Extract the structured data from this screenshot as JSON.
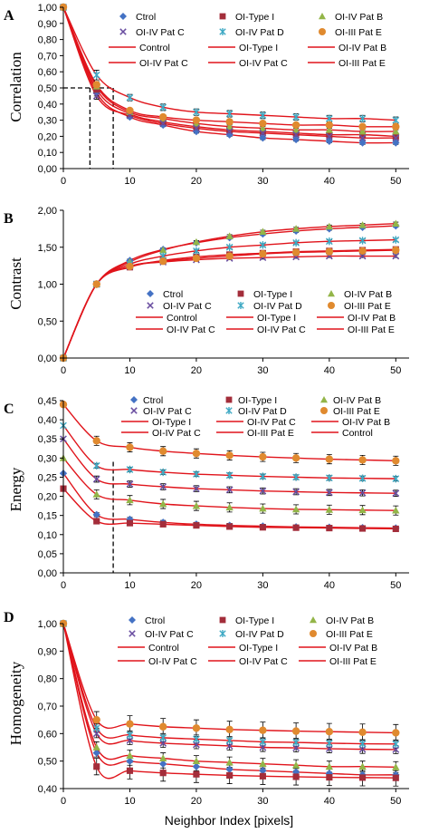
{
  "x_axis_label": "Neighbor Index [pixels]",
  "chart_data": [
    {
      "type": "scatter",
      "panel_letter": "A",
      "ylabel": "Correlation",
      "xlabel": "",
      "xlim": [
        0,
        52
      ],
      "ylim": [
        0,
        1.0
      ],
      "xticks": [
        0,
        10,
        20,
        30,
        40,
        50
      ],
      "xtick_labels": [
        "0",
        "10",
        "20",
        "30",
        "40",
        "50"
      ],
      "yticks": [
        0,
        0.1,
        0.2,
        0.3,
        0.4,
        0.5,
        0.6,
        0.7,
        0.8,
        0.9,
        1.0
      ],
      "ytick_labels": [
        "0,00",
        "0,10",
        "0,20",
        "0,30",
        "0,40",
        "0,50",
        "0,60",
        "0,70",
        "0,80",
        "0,90",
        "1,00"
      ],
      "x": [
        0,
        5,
        10,
        15,
        20,
        25,
        30,
        35,
        40,
        45,
        50
      ],
      "series": [
        {
          "name": "Ctrol",
          "marker": "diamond",
          "color": "#4472c4",
          "values": [
            1.0,
            0.47,
            0.32,
            0.27,
            0.23,
            0.21,
            0.19,
            0.18,
            0.17,
            0.16,
            0.16
          ],
          "error": [
            0.0,
            0.02,
            0.01,
            0.01,
            0.01,
            0.01,
            0.01,
            0.01,
            0.01,
            0.01,
            0.01
          ]
        },
        {
          "name": "OI-Type I",
          "marker": "square",
          "color": "#a32d3a",
          "values": [
            1.0,
            0.49,
            0.34,
            0.29,
            0.26,
            0.24,
            0.23,
            0.22,
            0.21,
            0.21,
            0.2
          ],
          "error": [
            0.0,
            0.02,
            0.01,
            0.01,
            0.01,
            0.01,
            0.01,
            0.01,
            0.01,
            0.01,
            0.01
          ]
        },
        {
          "name": "OI-IV Pat B",
          "marker": "triangle",
          "color": "#93b548",
          "values": [
            1.0,
            0.51,
            0.35,
            0.31,
            0.28,
            0.26,
            0.25,
            0.24,
            0.24,
            0.23,
            0.23
          ],
          "error": [
            0.0,
            0.02,
            0.01,
            0.01,
            0.01,
            0.01,
            0.01,
            0.01,
            0.01,
            0.01,
            0.01
          ]
        },
        {
          "name": "OI-IV Pat C",
          "marker": "x",
          "color": "#6a4ea0",
          "values": [
            1.0,
            0.45,
            0.33,
            0.28,
            0.25,
            0.23,
            0.22,
            0.21,
            0.2,
            0.19,
            0.19
          ],
          "error": [
            0.0,
            0.02,
            0.01,
            0.01,
            0.01,
            0.01,
            0.01,
            0.01,
            0.01,
            0.01,
            0.01
          ]
        },
        {
          "name": "OI-IV Pat D",
          "marker": "asterisk",
          "color": "#3fa9c4",
          "values": [
            1.0,
            0.58,
            0.44,
            0.38,
            0.35,
            0.34,
            0.33,
            0.32,
            0.31,
            0.31,
            0.3
          ],
          "error": [
            0.0,
            0.03,
            0.02,
            0.02,
            0.02,
            0.02,
            0.02,
            0.02,
            0.02,
            0.02,
            0.02
          ]
        },
        {
          "name": "OI-III Pat E",
          "marker": "circle",
          "color": "#e08a2f",
          "values": [
            1.0,
            0.52,
            0.36,
            0.32,
            0.3,
            0.29,
            0.28,
            0.27,
            0.27,
            0.26,
            0.26
          ],
          "error": [
            0.0,
            0.02,
            0.01,
            0.01,
            0.01,
            0.01,
            0.01,
            0.01,
            0.01,
            0.01,
            0.01
          ]
        }
      ],
      "fit_labels": [
        "Control",
        "OI-Type I",
        "OI-IV Pat B",
        "OI-IV Pat C",
        "OI-IV Pat C",
        "OI-III Pat E"
      ],
      "fit_color": "#e0141b",
      "legend_position": "top-right",
      "annotations": {
        "dashed_horizontal_y": 0.5,
        "dashed_horizontal_x": [
          0,
          7.5
        ],
        "dashed_vertical_x": [
          4,
          7.5
        ],
        "dashed_vertical_top": 0.5
      }
    },
    {
      "type": "scatter",
      "panel_letter": "B",
      "ylabel": "Contrast",
      "xlabel": "",
      "xlim": [
        0,
        52
      ],
      "ylim": [
        0,
        2.0
      ],
      "xticks": [
        0,
        10,
        20,
        30,
        40,
        50
      ],
      "xtick_labels": [
        "0",
        "10",
        "20",
        "30",
        "40",
        "50"
      ],
      "yticks": [
        0,
        0.5,
        1.0,
        1.5,
        2.0
      ],
      "ytick_labels": [
        "0,00",
        "0,50",
        "1,00",
        "1,50",
        "2,00"
      ],
      "x": [
        0,
        5,
        10,
        15,
        20,
        25,
        30,
        35,
        40,
        45,
        50
      ],
      "series": [
        {
          "name": "Ctrol",
          "marker": "diamond",
          "color": "#4472c4",
          "values": [
            0.0,
            1.0,
            1.32,
            1.47,
            1.56,
            1.63,
            1.68,
            1.72,
            1.75,
            1.77,
            1.79
          ],
          "error": [
            0.0,
            0.01,
            0.02,
            0.02,
            0.02,
            0.02,
            0.02,
            0.02,
            0.02,
            0.02,
            0.02
          ]
        },
        {
          "name": "OI-Type I",
          "marker": "square",
          "color": "#a32d3a",
          "values": [
            0.0,
            1.0,
            1.23,
            1.32,
            1.37,
            1.4,
            1.42,
            1.44,
            1.45,
            1.46,
            1.47
          ],
          "error": [
            0.0,
            0.01,
            0.02,
            0.02,
            0.02,
            0.02,
            0.02,
            0.02,
            0.02,
            0.02,
            0.02
          ]
        },
        {
          "name": "OI-IV Pat B",
          "marker": "triangle",
          "color": "#93b548",
          "values": [
            0.0,
            1.0,
            1.3,
            1.46,
            1.57,
            1.65,
            1.71,
            1.75,
            1.78,
            1.8,
            1.82
          ],
          "error": [
            0.0,
            0.01,
            0.02,
            0.02,
            0.02,
            0.02,
            0.02,
            0.02,
            0.02,
            0.02,
            0.02
          ]
        },
        {
          "name": "OI-IV Pat C",
          "marker": "x",
          "color": "#6a4ea0",
          "values": [
            0.0,
            1.0,
            1.24,
            1.3,
            1.33,
            1.35,
            1.36,
            1.37,
            1.38,
            1.38,
            1.38
          ],
          "error": [
            0.0,
            0.01,
            0.02,
            0.02,
            0.02,
            0.02,
            0.02,
            0.02,
            0.02,
            0.02,
            0.02
          ]
        },
        {
          "name": "OI-IV Pat D",
          "marker": "asterisk",
          "color": "#3fa9c4",
          "values": [
            0.0,
            1.0,
            1.27,
            1.38,
            1.45,
            1.5,
            1.53,
            1.56,
            1.58,
            1.59,
            1.6
          ],
          "error": [
            0.0,
            0.01,
            0.02,
            0.02,
            0.02,
            0.02,
            0.02,
            0.02,
            0.02,
            0.02,
            0.02
          ]
        },
        {
          "name": "OI-III Pat E",
          "marker": "circle",
          "color": "#e08a2f",
          "values": [
            0.0,
            1.0,
            1.24,
            1.31,
            1.35,
            1.38,
            1.41,
            1.43,
            1.44,
            1.45,
            1.46
          ],
          "error": [
            0.0,
            0.01,
            0.02,
            0.02,
            0.02,
            0.02,
            0.02,
            0.02,
            0.02,
            0.02,
            0.02
          ]
        }
      ],
      "fit_labels": [
        "Control",
        "OI-Type I",
        "OI-IV Pat B",
        "OI-IV Pat C",
        "OI-IV Pat C",
        "OI-III Pat E"
      ],
      "fit_color": "#e0141b",
      "legend_position": "lower-right"
    },
    {
      "type": "scatter",
      "panel_letter": "C",
      "ylabel": "Energy",
      "xlabel": "",
      "xlim": [
        0,
        52
      ],
      "ylim": [
        0,
        0.45
      ],
      "xticks": [
        0,
        10,
        20,
        30,
        40,
        50
      ],
      "xtick_labels": [
        "0",
        "10",
        "20",
        "30",
        "40",
        "50"
      ],
      "yticks": [
        0,
        0.05,
        0.1,
        0.15,
        0.2,
        0.25,
        0.3,
        0.35,
        0.4,
        0.45
      ],
      "ytick_labels": [
        "0,00",
        "0,05",
        "0,10",
        "0,15",
        "0,20",
        "0,25",
        "0,30",
        "0,35",
        "0,40",
        "0,45"
      ],
      "x": [
        0,
        5,
        10,
        15,
        20,
        25,
        30,
        35,
        40,
        45,
        50
      ],
      "series": [
        {
          "name": "Ctrol",
          "marker": "diamond",
          "color": "#4472c4",
          "values": [
            0.26,
            0.152,
            0.14,
            0.132,
            0.127,
            0.124,
            0.122,
            0.12,
            0.119,
            0.118,
            0.117
          ],
          "error": [
            0.0,
            0.005,
            0.005,
            0.005,
            0.005,
            0.005,
            0.005,
            0.005,
            0.005,
            0.005,
            0.005
          ]
        },
        {
          "name": "OI-Type I",
          "marker": "square",
          "color": "#a32d3a",
          "values": [
            0.22,
            0.135,
            0.13,
            0.127,
            0.124,
            0.121,
            0.119,
            0.118,
            0.117,
            0.116,
            0.115
          ],
          "error": [
            0.0,
            0.005,
            0.005,
            0.005,
            0.005,
            0.005,
            0.005,
            0.005,
            0.005,
            0.005,
            0.005
          ]
        },
        {
          "name": "OI-IV Pat B",
          "marker": "triangle",
          "color": "#93b548",
          "values": [
            0.3,
            0.205,
            0.19,
            0.18,
            0.175,
            0.171,
            0.168,
            0.166,
            0.165,
            0.164,
            0.163
          ],
          "error": [
            0.0,
            0.012,
            0.012,
            0.012,
            0.012,
            0.012,
            0.012,
            0.012,
            0.012,
            0.012,
            0.012
          ]
        },
        {
          "name": "OI-IV Pat C",
          "marker": "x",
          "color": "#6a4ea0",
          "values": [
            0.35,
            0.245,
            0.232,
            0.225,
            0.22,
            0.217,
            0.214,
            0.212,
            0.21,
            0.209,
            0.208
          ],
          "error": [
            0.0,
            0.008,
            0.008,
            0.008,
            0.008,
            0.008,
            0.008,
            0.008,
            0.008,
            0.008,
            0.008
          ]
        },
        {
          "name": "OI-IV Pat D",
          "marker": "asterisk",
          "color": "#3fa9c4",
          "values": [
            0.385,
            0.28,
            0.27,
            0.263,
            0.258,
            0.255,
            0.252,
            0.25,
            0.248,
            0.247,
            0.246
          ],
          "error": [
            0.0,
            0.006,
            0.006,
            0.006,
            0.006,
            0.006,
            0.006,
            0.006,
            0.006,
            0.006,
            0.006
          ]
        },
        {
          "name": "OI-III Pat E",
          "marker": "circle",
          "color": "#e08a2f",
          "values": [
            0.44,
            0.345,
            0.328,
            0.318,
            0.312,
            0.307,
            0.303,
            0.3,
            0.297,
            0.295,
            0.293
          ],
          "error": [
            0.0,
            0.012,
            0.012,
            0.012,
            0.012,
            0.012,
            0.012,
            0.012,
            0.012,
            0.012,
            0.012
          ]
        }
      ],
      "legend_rows": [
        [
          "Ctrol",
          "OI-Type I",
          "OI-IV Pat B"
        ],
        [
          "OI-IV Pat C",
          "OI-IV Pat D",
          "OI-III Pat E"
        ],
        [
          "OI-Type I",
          "OI-IV Pat C",
          "OI-IV Pat B"
        ],
        [
          "OI-IV Pat C",
          "OI-III Pat E",
          "Control"
        ]
      ],
      "fit_color": "#e0141b",
      "legend_position": "top",
      "annotations": {
        "dashed_vertical_x": 7.5,
        "dashed_vertical_top": 0.29
      }
    },
    {
      "type": "scatter",
      "panel_letter": "D",
      "ylabel": "Homogeneity",
      "xlabel": "Neighbor Index [pixels]",
      "xlim": [
        0,
        52
      ],
      "ylim": [
        0.4,
        1.0
      ],
      "xticks": [
        0,
        10,
        20,
        30,
        40,
        50
      ],
      "xtick_labels": [
        "0",
        "10",
        "20",
        "30",
        "40",
        "50"
      ],
      "yticks": [
        0.4,
        0.5,
        0.6,
        0.7,
        0.8,
        0.9,
        1.0
      ],
      "ytick_labels": [
        "0,40",
        "0,50",
        "0,60",
        "0,70",
        "0,80",
        "0,90",
        "1,00"
      ],
      "x": [
        0,
        5,
        10,
        15,
        20,
        25,
        30,
        35,
        40,
        45,
        50
      ],
      "series": [
        {
          "name": "Ctrol",
          "marker": "diamond",
          "color": "#4472c4",
          "values": [
            1.0,
            0.53,
            0.5,
            0.49,
            0.48,
            0.47,
            0.465,
            0.46,
            0.455,
            0.45,
            0.45
          ],
          "error": [
            0.0,
            0.015,
            0.015,
            0.015,
            0.015,
            0.015,
            0.015,
            0.015,
            0.015,
            0.015,
            0.015
          ]
        },
        {
          "name": "OI-Type I",
          "marker": "square",
          "color": "#a32d3a",
          "values": [
            1.0,
            0.48,
            0.465,
            0.457,
            0.452,
            0.448,
            0.445,
            0.443,
            0.441,
            0.44,
            0.439
          ],
          "error": [
            0.0,
            0.03,
            0.03,
            0.03,
            0.03,
            0.03,
            0.03,
            0.03,
            0.03,
            0.03,
            0.03
          ]
        },
        {
          "name": "OI-IV Pat B",
          "marker": "triangle",
          "color": "#93b548",
          "values": [
            1.0,
            0.55,
            0.52,
            0.51,
            0.5,
            0.495,
            0.49,
            0.485,
            0.48,
            0.48,
            0.478
          ],
          "error": [
            0.0,
            0.02,
            0.02,
            0.02,
            0.02,
            0.02,
            0.02,
            0.02,
            0.02,
            0.02,
            0.02
          ]
        },
        {
          "name": "OI-IV Pat C",
          "marker": "x",
          "color": "#6a4ea0",
          "values": [
            1.0,
            0.6,
            0.575,
            0.565,
            0.56,
            0.555,
            0.55,
            0.548,
            0.545,
            0.543,
            0.542
          ],
          "error": [
            0.0,
            0.015,
            0.015,
            0.015,
            0.015,
            0.015,
            0.015,
            0.015,
            0.015,
            0.015,
            0.015
          ]
        },
        {
          "name": "OI-IV Pat D",
          "marker": "asterisk",
          "color": "#3fa9c4",
          "values": [
            1.0,
            0.62,
            0.595,
            0.585,
            0.58,
            0.575,
            0.57,
            0.568,
            0.565,
            0.563,
            0.562
          ],
          "error": [
            0.0,
            0.015,
            0.015,
            0.015,
            0.015,
            0.015,
            0.015,
            0.015,
            0.015,
            0.015,
            0.015
          ]
        },
        {
          "name": "OI-III Pat E",
          "marker": "circle",
          "color": "#e08a2f",
          "values": [
            1.0,
            0.65,
            0.635,
            0.625,
            0.62,
            0.615,
            0.612,
            0.609,
            0.607,
            0.605,
            0.603
          ],
          "error": [
            0.0,
            0.03,
            0.03,
            0.03,
            0.03,
            0.03,
            0.03,
            0.03,
            0.03,
            0.03,
            0.03
          ]
        }
      ],
      "fit_labels": [
        "Control",
        "OI-Type I",
        "OI-IV Pat B",
        "OI-IV Pat C",
        "OI-IV Pat C",
        "OI-III Pat E"
      ],
      "fit_color": "#e0141b",
      "legend_position": "top-right"
    }
  ]
}
